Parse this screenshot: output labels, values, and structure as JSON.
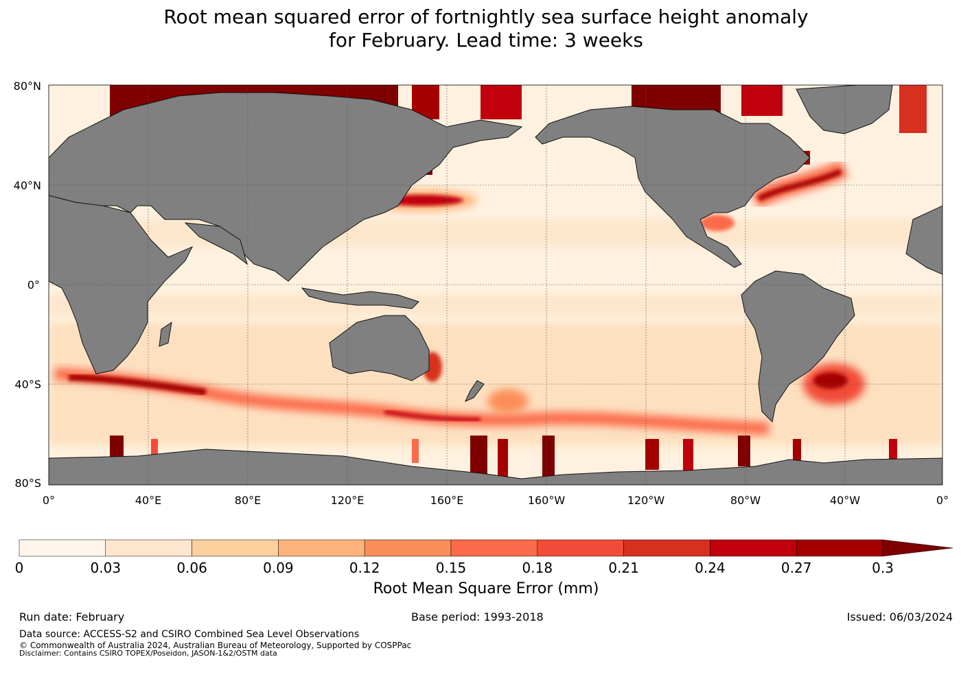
{
  "title": {
    "line1": "Root mean squared error of fortnightly sea surface height anomaly",
    "line2": "for February. Lead time: 3 weeks"
  },
  "map": {
    "lat_labels": [
      "80°N",
      "40°N",
      "0°",
      "40°S",
      "80°S"
    ],
    "lon_labels": [
      "0°",
      "40°E",
      "80°E",
      "120°E",
      "160°E",
      "160°W",
      "120°W",
      "80°W",
      "40°W",
      "0°"
    ],
    "land_color": "#808080",
    "ocean_base_color": "#fff5e6"
  },
  "colorbar": {
    "ticks": [
      "0",
      "0.03",
      "0.06",
      "0.09",
      "0.12",
      "0.15",
      "0.18",
      "0.21",
      "0.24",
      "0.27",
      "0.3"
    ],
    "colors": [
      "#fff5eb",
      "#fee6ce",
      "#fdd09e",
      "#fdb27c",
      "#fc8e59",
      "#fb6a4a",
      "#f14c37",
      "#d7301f",
      "#c0000c",
      "#a50000",
      "#7f0000"
    ],
    "label": "Root Mean Square Error (mm)",
    "extend": "max"
  },
  "footer": {
    "run_date": "Run date: February",
    "base_period": "Base period: 1993-2018",
    "issued": "Issued: 06/03/2024",
    "data_source": "Data source: ACCESS-S2 and CSIRO Combined Sea Level Observations",
    "copyright": "© Commonwealth of Australia 2024, Australian Bureau of Meteorology, Supported by COSPPac",
    "disclaimer": "Disclaimer: Contains CSIRO TOPEX/Poseidon, JASON-1&2/OSTM data"
  }
}
